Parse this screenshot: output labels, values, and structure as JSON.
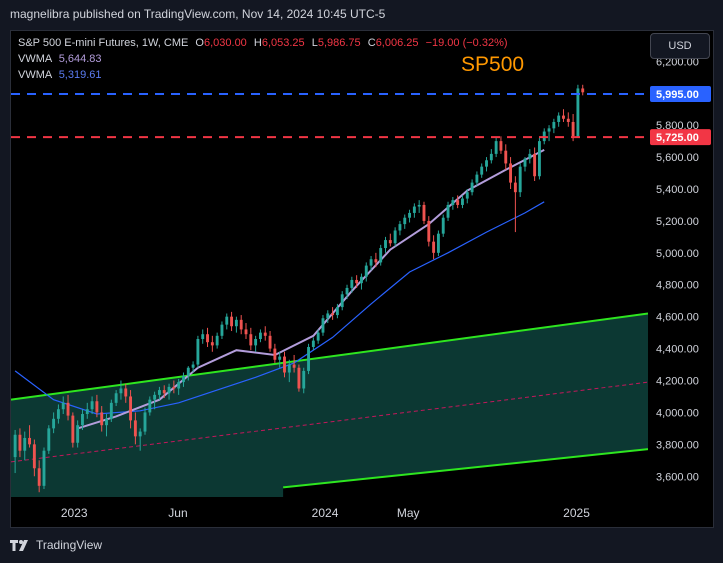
{
  "publisher": "magnelibra published on TradingView.com, Nov 14, 2024 10:45 UTC-5",
  "currency": "USD",
  "brand": "TradingView",
  "legend": {
    "symbol": "S&P 500 E-mini Futures, 1W, CME",
    "open_label": "O",
    "open": "6,030.00",
    "high_label": "H",
    "high": "6,053.25",
    "low_label": "L",
    "low": "5,986.75",
    "close_label": "C",
    "close": "6,006.25",
    "change": "−19.00 (−0.32%)",
    "vwma1_label": "VWMA",
    "vwma1": "5,644.83",
    "vwma2_label": "VWMA",
    "vwma2": "5,319.61"
  },
  "colors": {
    "up": "#26a69a",
    "down": "#ef5350",
    "blue_level": "#2962ff",
    "red_level": "#f23645",
    "vwma_fast": "#b39ddb",
    "vwma_slow": "#2962ff",
    "channel": "#2ee61f",
    "channel_fill": "#0d3b36",
    "title": "#ff9800"
  },
  "chart_data": {
    "type": "candlestick",
    "title": "SP500",
    "y_axis_ticks": [
      "6,200.00",
      "6,000.00",
      "5,800.00",
      "5,600.00",
      "5,400.00",
      "5,200.00",
      "5,000.00",
      "4,800.00",
      "4,600.00",
      "4,400.00",
      "4,200.00",
      "4,000.00",
      "3,800.00",
      "3,600.00"
    ],
    "y_tick_values": [
      6200,
      6000,
      5800,
      5600,
      5400,
      5200,
      5000,
      4800,
      4600,
      4400,
      4200,
      4000,
      3800,
      3600
    ],
    "ylim": [
      3470,
      6390
    ],
    "x_axis_labels": [
      {
        "label": "2023",
        "date": "2023-01-01"
      },
      {
        "label": "Jun",
        "date": "2023-06-01"
      },
      {
        "label": "2024",
        "date": "2024-01-01"
      },
      {
        "label": "May",
        "date": "2024-05-01"
      },
      {
        "label": "2025",
        "date": "2025-01-01"
      }
    ],
    "x_range": [
      "2022-10-01",
      "2025-04-15"
    ],
    "horizontal_levels": [
      {
        "value": 5995,
        "label": "5,995.00",
        "color": "#2962ff",
        "style": "dashed"
      },
      {
        "value": 5725,
        "label": "5,725.00",
        "color": "#f23645",
        "style": "dashed"
      }
    ],
    "channel": {
      "upper": [
        [
          "2022-10-01",
          4080
        ],
        [
          "2025-04-15",
          4620
        ]
      ],
      "middle": [
        [
          "2022-10-01",
          3690
        ],
        [
          "2025-04-15",
          4190
        ]
      ],
      "lower": [
        [
          "2023-11-01",
          3530
        ],
        [
          "2025-04-15",
          3770
        ]
      ]
    },
    "candles_start": "2022-10-07",
    "candles_interval_days": 7,
    "candles": [
      [
        3720,
        3890,
        3620,
        3860
      ],
      [
        3860,
        3900,
        3720,
        3760
      ],
      [
        3760,
        3880,
        3700,
        3840
      ],
      [
        3840,
        3920,
        3780,
        3800
      ],
      [
        3800,
        3830,
        3600,
        3650
      ],
      [
        3650,
        3700,
        3500,
        3540
      ],
      [
        3540,
        3780,
        3520,
        3760
      ],
      [
        3760,
        3920,
        3740,
        3900
      ],
      [
        3900,
        4000,
        3870,
        3960
      ],
      [
        3960,
        4050,
        3930,
        4020
      ],
      [
        4020,
        4100,
        3990,
        4060
      ],
      [
        4060,
        4110,
        3950,
        3980
      ],
      [
        3980,
        4000,
        3780,
        3810
      ],
      [
        3810,
        3950,
        3780,
        3920
      ],
      [
        3920,
        4020,
        3890,
        3990
      ],
      [
        3990,
        4060,
        3960,
        4020
      ],
      [
        4020,
        4100,
        3990,
        4070
      ],
      [
        4070,
        4110,
        3970,
        4000
      ],
      [
        4000,
        4040,
        3880,
        3920
      ],
      [
        3920,
        3990,
        3850,
        3960
      ],
      [
        3960,
        4080,
        3940,
        4060
      ],
      [
        4060,
        4140,
        4040,
        4120
      ],
      [
        4120,
        4200,
        4080,
        4150
      ],
      [
        4150,
        4180,
        4060,
        4100
      ],
      [
        4100,
        4140,
        3900,
        3950
      ],
      [
        3950,
        4000,
        3800,
        3850
      ],
      [
        3850,
        3900,
        3760,
        3880
      ],
      [
        3880,
        4030,
        3860,
        4000
      ],
      [
        4000,
        4100,
        3980,
        4080
      ],
      [
        4080,
        4130,
        4020,
        4110
      ],
      [
        4110,
        4160,
        4080,
        4140
      ],
      [
        4140,
        4170,
        4090,
        4120
      ],
      [
        4120,
        4180,
        4080,
        4160
      ],
      [
        4160,
        4200,
        4120,
        4150
      ],
      [
        4150,
        4210,
        4110,
        4190
      ],
      [
        4190,
        4250,
        4160,
        4230
      ],
      [
        4230,
        4290,
        4200,
        4280
      ],
      [
        4280,
        4320,
        4250,
        4300
      ],
      [
        4300,
        4480,
        4280,
        4460
      ],
      [
        4460,
        4520,
        4430,
        4490
      ],
      [
        4490,
        4530,
        4410,
        4440
      ],
      [
        4440,
        4480,
        4380,
        4420
      ],
      [
        4420,
        4500,
        4400,
        4480
      ],
      [
        4480,
        4570,
        4460,
        4550
      ],
      [
        4550,
        4620,
        4520,
        4600
      ],
      [
        4600,
        4630,
        4510,
        4540
      ],
      [
        4540,
        4600,
        4500,
        4580
      ],
      [
        4580,
        4610,
        4490,
        4520
      ],
      [
        4520,
        4560,
        4460,
        4490
      ],
      [
        4490,
        4530,
        4390,
        4420
      ],
      [
        4420,
        4480,
        4380,
        4460
      ],
      [
        4460,
        4520,
        4440,
        4500
      ],
      [
        4500,
        4540,
        4450,
        4480
      ],
      [
        4480,
        4510,
        4380,
        4400
      ],
      [
        4400,
        4430,
        4310,
        4330
      ],
      [
        4330,
        4380,
        4280,
        4350
      ],
      [
        4350,
        4380,
        4220,
        4250
      ],
      [
        4250,
        4330,
        4190,
        4300
      ],
      [
        4300,
        4360,
        4250,
        4280
      ],
      [
        4280,
        4300,
        4130,
        4150
      ],
      [
        4150,
        4280,
        4120,
        4260
      ],
      [
        4260,
        4430,
        4240,
        4410
      ],
      [
        4410,
        4470,
        4390,
        4450
      ],
      [
        4450,
        4520,
        4430,
        4500
      ],
      [
        4500,
        4610,
        4480,
        4590
      ],
      [
        4590,
        4640,
        4560,
        4620
      ],
      [
        4620,
        4660,
        4580,
        4610
      ],
      [
        4610,
        4680,
        4590,
        4660
      ],
      [
        4660,
        4760,
        4640,
        4740
      ],
      [
        4740,
        4800,
        4710,
        4780
      ],
      [
        4780,
        4850,
        4750,
        4830
      ],
      [
        4830,
        4860,
        4780,
        4810
      ],
      [
        4810,
        4870,
        4770,
        4850
      ],
      [
        4850,
        4940,
        4820,
        4920
      ],
      [
        4920,
        4980,
        4890,
        4960
      ],
      [
        4960,
        5000,
        4910,
        4940
      ],
      [
        4940,
        5050,
        4920,
        5030
      ],
      [
        5030,
        5100,
        5000,
        5080
      ],
      [
        5080,
        5120,
        5040,
        5060
      ],
      [
        5060,
        5160,
        5040,
        5140
      ],
      [
        5140,
        5200,
        5110,
        5180
      ],
      [
        5180,
        5240,
        5150,
        5220
      ],
      [
        5220,
        5270,
        5190,
        5250
      ],
      [
        5250,
        5310,
        5220,
        5290
      ],
      [
        5290,
        5330,
        5250,
        5300
      ],
      [
        5300,
        5320,
        5180,
        5200
      ],
      [
        5200,
        5230,
        5040,
        5070
      ],
      [
        5070,
        5110,
        4960,
        5000
      ],
      [
        5000,
        5140,
        4980,
        5120
      ],
      [
        5120,
        5240,
        5100,
        5220
      ],
      [
        5220,
        5320,
        5200,
        5300
      ],
      [
        5300,
        5350,
        5270,
        5330
      ],
      [
        5330,
        5360,
        5280,
        5300
      ],
      [
        5300,
        5360,
        5280,
        5340
      ],
      [
        5340,
        5400,
        5310,
        5380
      ],
      [
        5380,
        5460,
        5360,
        5440
      ],
      [
        5440,
        5510,
        5420,
        5490
      ],
      [
        5490,
        5560,
        5470,
        5540
      ],
      [
        5540,
        5600,
        5510,
        5580
      ],
      [
        5580,
        5650,
        5560,
        5620
      ],
      [
        5620,
        5720,
        5600,
        5700
      ],
      [
        5700,
        5730,
        5620,
        5640
      ],
      [
        5640,
        5680,
        5520,
        5560
      ],
      [
        5560,
        5600,
        5400,
        5440
      ],
      [
        5440,
        5480,
        5130,
        5380
      ],
      [
        5380,
        5560,
        5350,
        5540
      ],
      [
        5540,
        5600,
        5510,
        5590
      ],
      [
        5590,
        5650,
        5560,
        5620
      ],
      [
        5620,
        5660,
        5450,
        5480
      ],
      [
        5480,
        5720,
        5460,
        5700
      ],
      [
        5700,
        5780,
        5680,
        5760
      ],
      [
        5760,
        5800,
        5700,
        5780
      ],
      [
        5780,
        5840,
        5750,
        5820
      ],
      [
        5820,
        5880,
        5790,
        5860
      ],
      [
        5860,
        5900,
        5820,
        5840
      ],
      [
        5840,
        5880,
        5790,
        5820
      ],
      [
        5820,
        5870,
        5700,
        5730
      ],
      [
        5730,
        6053,
        5720,
        6030
      ],
      [
        6030,
        6053,
        5987,
        6006
      ]
    ],
    "vwma_fast": [
      [
        "2023-01-06",
        3900
      ],
      [
        "2023-03-03",
        3975
      ],
      [
        "2023-05-05",
        4080
      ],
      [
        "2023-06-30",
        4280
      ],
      [
        "2023-08-25",
        4390
      ],
      [
        "2023-10-20",
        4360
      ],
      [
        "2023-12-15",
        4480
      ],
      [
        "2024-02-09",
        4760
      ],
      [
        "2024-04-05",
        5020
      ],
      [
        "2024-05-31",
        5180
      ],
      [
        "2024-07-26",
        5390
      ],
      [
        "2024-09-20",
        5520
      ],
      [
        "2024-11-15",
        5645
      ]
    ],
    "vwma_slow": [
      [
        "2022-10-07",
        4260
      ],
      [
        "2022-12-02",
        4080
      ],
      [
        "2023-02-03",
        3990
      ],
      [
        "2023-04-07",
        4010
      ],
      [
        "2023-06-02",
        4060
      ],
      [
        "2023-07-28",
        4140
      ],
      [
        "2023-09-22",
        4220
      ],
      [
        "2023-11-17",
        4310
      ],
      [
        "2024-01-12",
        4470
      ],
      [
        "2024-03-08",
        4680
      ],
      [
        "2024-05-03",
        4880
      ],
      [
        "2024-06-28",
        5000
      ],
      [
        "2024-08-23",
        5130
      ],
      [
        "2024-10-18",
        5250
      ],
      [
        "2024-11-15",
        5320
      ]
    ]
  }
}
